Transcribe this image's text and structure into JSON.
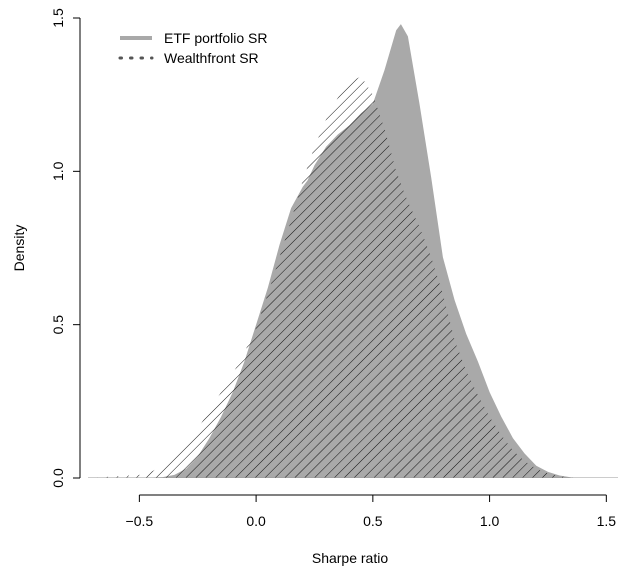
{
  "chart_data": {
    "type": "area",
    "title": "",
    "xlabel": "Sharpe ratio",
    "ylabel": "Density",
    "xlim": [
      -0.72,
      1.55
    ],
    "ylim": [
      0,
      1.5
    ],
    "x_ticks": [
      -0.5,
      0.0,
      0.5,
      1.0,
      1.5
    ],
    "x_tick_labels": [
      "−0.5",
      "0.0",
      "0.5",
      "1.0",
      "1.5"
    ],
    "y_ticks": [
      0.0,
      0.5,
      1.0,
      1.5
    ],
    "y_tick_labels": [
      "0.0",
      "0.5",
      "1.0",
      "1.5"
    ],
    "grid": false,
    "legend": {
      "position": "top-left",
      "entries": [
        {
          "label": "ETF portfolio SR",
          "style": "solid",
          "color": "#a9a9a9"
        },
        {
          "label": "Wealthfront SR",
          "style": "dotted",
          "color": "#555555"
        }
      ]
    },
    "series": [
      {
        "name": "ETF portfolio SR",
        "fill": "solid-gray",
        "color": "#a9a9a9",
        "x": [
          -0.72,
          -0.5,
          -0.4,
          -0.35,
          -0.3,
          -0.25,
          -0.2,
          -0.15,
          -0.1,
          -0.05,
          0.0,
          0.05,
          0.1,
          0.15,
          0.2,
          0.22,
          0.25,
          0.3,
          0.35,
          0.4,
          0.45,
          0.5,
          0.55,
          0.6,
          0.62,
          0.65,
          0.7,
          0.75,
          0.8,
          0.85,
          0.9,
          0.95,
          1.0,
          1.05,
          1.1,
          1.15,
          1.2,
          1.25,
          1.3,
          1.35,
          1.4,
          1.55
        ],
        "values": [
          0.0,
          0.0,
          0.003,
          0.01,
          0.03,
          0.07,
          0.13,
          0.2,
          0.28,
          0.38,
          0.5,
          0.62,
          0.76,
          0.88,
          0.95,
          0.97,
          1.02,
          1.08,
          1.12,
          1.15,
          1.19,
          1.22,
          1.33,
          1.46,
          1.48,
          1.44,
          1.22,
          0.98,
          0.72,
          0.58,
          0.47,
          0.38,
          0.28,
          0.2,
          0.13,
          0.08,
          0.04,
          0.02,
          0.008,
          0.002,
          0.0,
          0.0
        ]
      },
      {
        "name": "Wealthfront SR",
        "fill": "hatched",
        "color": "#000000",
        "x": [
          -0.72,
          -0.5,
          -0.45,
          -0.4,
          -0.35,
          -0.3,
          -0.25,
          -0.2,
          -0.15,
          -0.1,
          -0.05,
          0.0,
          0.05,
          0.1,
          0.15,
          0.2,
          0.25,
          0.3,
          0.35,
          0.4,
          0.45,
          0.5,
          0.55,
          0.6,
          0.65,
          0.7,
          0.75,
          0.8,
          0.85,
          0.9,
          0.95,
          1.0,
          1.05,
          1.1,
          1.15,
          1.2,
          1.25,
          1.3,
          1.35,
          1.4,
          1.55
        ],
        "values": [
          0.0,
          0.01,
          0.02,
          0.04,
          0.07,
          0.11,
          0.16,
          0.22,
          0.28,
          0.34,
          0.41,
          0.49,
          0.6,
          0.72,
          0.84,
          0.97,
          1.08,
          1.17,
          1.24,
          1.29,
          1.31,
          1.25,
          1.14,
          1.0,
          0.9,
          0.82,
          0.72,
          0.6,
          0.45,
          0.35,
          0.27,
          0.2,
          0.14,
          0.09,
          0.055,
          0.03,
          0.015,
          0.006,
          0.002,
          0.0,
          0.0
        ]
      }
    ]
  }
}
